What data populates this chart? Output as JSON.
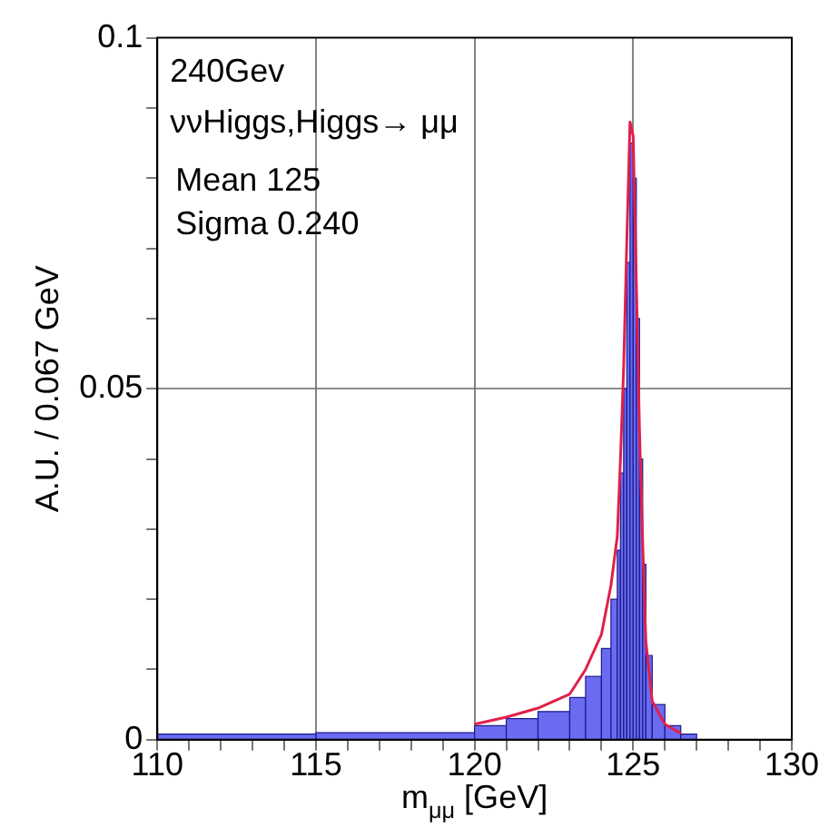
{
  "chart_data": {
    "type": "histogram",
    "bins": [
      110,
      115,
      120,
      121,
      122,
      123,
      123.5,
      124,
      124.3,
      124.5,
      124.6,
      124.7,
      124.8,
      124.9,
      125.0,
      125.1,
      125.2,
      125.3,
      125.4,
      125.6,
      126,
      126.5,
      127
    ],
    "values": [
      0.0008,
      0.001,
      0.002,
      0.003,
      0.004,
      0.006,
      0.009,
      0.013,
      0.02,
      0.027,
      0.038,
      0.05,
      0.068,
      0.085,
      0.08,
      0.06,
      0.04,
      0.025,
      0.012,
      0.005,
      0.002,
      0.0008
    ],
    "color": "#6b6bf2",
    "series": [
      {
        "type": "line",
        "color": "#e0204a",
        "x": [
          120,
          121,
          122,
          123,
          123.5,
          124,
          124.3,
          124.5,
          124.6,
          124.7,
          124.8,
          124.9,
          125.0,
          125.1,
          125.2,
          125.3,
          125.4,
          125.6,
          126,
          126.5
        ],
        "values": [
          0.0022,
          0.0032,
          0.0045,
          0.0065,
          0.01,
          0.015,
          0.022,
          0.029,
          0.04,
          0.053,
          0.071,
          0.088,
          0.086,
          0.065,
          0.044,
          0.028,
          0.014,
          0.0055,
          0.0022,
          0.0009
        ]
      }
    ],
    "xlabel": "m$_{μμ}$ [GeV]",
    "ylabel": "A.U. / 0.067 GeV",
    "annotations": [
      "240Gev",
      "ννHiggs,Higgs→ μμ",
      "Mean 125",
      "Sigma 0.240"
    ],
    "xlim": [
      110,
      130
    ],
    "xticks": [
      110,
      {
        "value": 111,
        "label": null
      },
      {
        "value": 112,
        "label": null
      },
      {
        "value": 113,
        "label": null
      },
      {
        "value": 114,
        "label": null
      },
      115,
      {
        "value": 116,
        "label": null
      },
      {
        "value": 117,
        "label": null
      },
      {
        "value": 118,
        "label": null
      },
      {
        "value": 119,
        "label": null
      },
      120,
      {
        "value": 121,
        "label": null
      },
      {
        "value": 122,
        "label": null
      },
      {
        "value": 123,
        "label": null
      },
      {
        "value": 124,
        "label": null
      },
      125,
      {
        "value": 126,
        "label": null
      },
      {
        "value": 127,
        "label": null
      },
      {
        "value": 128,
        "label": null
      },
      {
        "value": 129,
        "label": null
      },
      130
    ],
    "ylim": [
      0,
      0.1
    ],
    "yticks": [
      0,
      {
        "value": 0.01,
        "label": null
      },
      {
        "value": 0.02,
        "label": null
      },
      {
        "value": 0.03,
        "label": null
      },
      {
        "value": 0.04,
        "label": null
      },
      0.05,
      {
        "value": 0.06,
        "label": null
      },
      {
        "value": 0.07,
        "label": null
      },
      {
        "value": 0.08,
        "label": null
      },
      {
        "value": 0.09,
        "label": null
      },
      0.1
    ],
    "grid": true,
    "legend": false
  }
}
